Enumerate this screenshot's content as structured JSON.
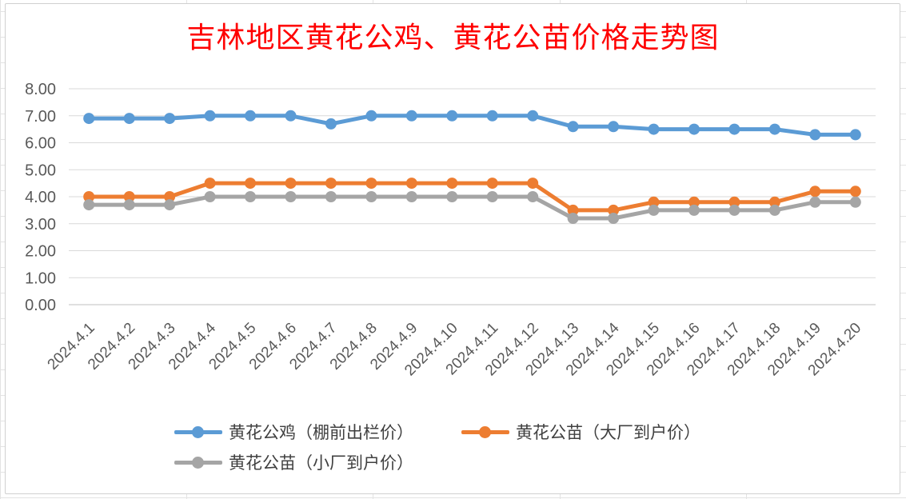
{
  "chart_data": {
    "type": "line",
    "title": "吉林地区黄花公鸡、黄花公苗价格走势图",
    "categories": [
      "2024.4.1",
      "2024.4.2",
      "2024.4.3",
      "2024.4.4",
      "2024.4.5",
      "2024.4.6",
      "2024.4.7",
      "2024.4.8",
      "2024.4.9",
      "2024.4.10",
      "2024.4.11",
      "2024.4.12",
      "2024.4.13",
      "2024.4.14",
      "2024.4.15",
      "2024.4.16",
      "2024.4.17",
      "2024.4.18",
      "2024.4.19",
      "2024.4.20"
    ],
    "y_ticks": [
      "0.00",
      "1.00",
      "2.00",
      "3.00",
      "4.00",
      "5.00",
      "6.00",
      "7.00",
      "8.00"
    ],
    "ylim": [
      0,
      8
    ],
    "grid": true,
    "legend_position": "bottom",
    "series": [
      {
        "name": "黄花公鸡（棚前出栏价）",
        "color": "#5b9bd5",
        "values": [
          6.9,
          6.9,
          6.9,
          7.0,
          7.0,
          7.0,
          6.7,
          7.0,
          7.0,
          7.0,
          7.0,
          7.0,
          6.6,
          6.6,
          6.5,
          6.5,
          6.5,
          6.5,
          6.3,
          6.3
        ]
      },
      {
        "name": "黄花公苗（大厂到户价）",
        "color": "#ed7d31",
        "values": [
          4.0,
          4.0,
          4.0,
          4.5,
          4.5,
          4.5,
          4.5,
          4.5,
          4.5,
          4.5,
          4.5,
          4.5,
          3.5,
          3.5,
          3.8,
          3.8,
          3.8,
          3.8,
          4.2,
          4.2
        ]
      },
      {
        "name": "黄花公苗（小厂到户价）",
        "color": "#a5a5a5",
        "values": [
          3.7,
          3.7,
          3.7,
          4.0,
          4.0,
          4.0,
          4.0,
          4.0,
          4.0,
          4.0,
          4.0,
          4.0,
          3.2,
          3.2,
          3.5,
          3.5,
          3.5,
          3.5,
          3.8,
          3.8
        ]
      }
    ]
  }
}
